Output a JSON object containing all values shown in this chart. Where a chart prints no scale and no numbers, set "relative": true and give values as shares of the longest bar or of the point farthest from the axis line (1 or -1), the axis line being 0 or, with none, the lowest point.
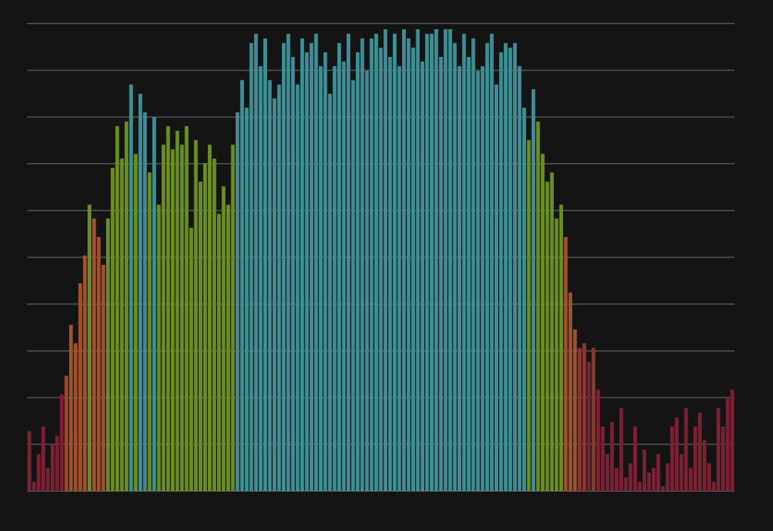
{
  "chart_data": {
    "type": "bar",
    "relative": true,
    "grid": "y",
    "categories": [
      null,
      null,
      null,
      null,
      null,
      null,
      null,
      null,
      null,
      null,
      null,
      null,
      null,
      null,
      null,
      null,
      null,
      null,
      null,
      null,
      null,
      null,
      null,
      null,
      null,
      null,
      null,
      null,
      null,
      null,
      null,
      null,
      null,
      null,
      null,
      null,
      null,
      null,
      null,
      null,
      null,
      null,
      null,
      null,
      null,
      null,
      null,
      null,
      null,
      null,
      null,
      null,
      null,
      null,
      null,
      null,
      null,
      null,
      null,
      null,
      null,
      null,
      null,
      null,
      null,
      null,
      null,
      null,
      null,
      null,
      null,
      null,
      null,
      null,
      null,
      null,
      null,
      null,
      null,
      null,
      null,
      null,
      null,
      null,
      null,
      null,
      null,
      null,
      null,
      null,
      null,
      null,
      null,
      null,
      null,
      null,
      null,
      null,
      null,
      null,
      null,
      null,
      null,
      null,
      null,
      null,
      null,
      null,
      null,
      null,
      null,
      null,
      null,
      null,
      null,
      null,
      null,
      null,
      null,
      null,
      null,
      null,
      null,
      null,
      null,
      null,
      null,
      null,
      null,
      null,
      null,
      null,
      null,
      null,
      null,
      null,
      null,
      null,
      null,
      null,
      null,
      null,
      null,
      null,
      null,
      null,
      null,
      null,
      null,
      null,
      null,
      null,
      null
    ],
    "values": [
      0.13,
      0.02,
      0.08,
      0.14,
      0.05,
      0.1,
      0.12,
      0.21,
      0.25,
      0.36,
      0.32,
      0.45,
      0.51,
      0.62,
      0.59,
      0.55,
      0.49,
      0.59,
      0.7,
      0.79,
      0.72,
      0.8,
      0.88,
      0.73,
      0.86,
      0.82,
      0.69,
      0.81,
      0.62,
      0.75,
      0.79,
      0.74,
      0.78,
      0.75,
      0.79,
      0.57,
      0.76,
      0.67,
      0.71,
      0.75,
      0.72,
      0.6,
      0.66,
      0.62,
      0.75,
      0.82,
      0.89,
      0.83,
      0.97,
      0.99,
      0.92,
      0.98,
      0.89,
      0.85,
      0.88,
      0.97,
      0.99,
      0.94,
      0.88,
      0.98,
      0.95,
      0.97,
      0.99,
      0.92,
      0.95,
      0.86,
      0.92,
      0.97,
      0.93,
      0.99,
      0.89,
      0.95,
      0.98,
      0.91,
      0.98,
      0.99,
      0.96,
      1.0,
      0.94,
      0.99,
      0.92,
      1.0,
      0.98,
      0.96,
      1.0,
      0.93,
      0.99,
      0.99,
      1.0,
      0.94,
      1.0,
      1.0,
      0.97,
      0.92,
      0.99,
      0.94,
      0.98,
      0.91,
      0.92,
      0.97,
      0.99,
      0.88,
      0.95,
      0.97,
      0.96,
      0.97,
      0.92,
      0.83,
      0.76,
      0.87,
      0.8,
      0.73,
      0.67,
      0.69,
      0.59,
      0.62,
      0.55,
      0.43,
      0.35,
      0.31,
      0.32,
      0.28,
      0.31,
      0.22,
      0.14,
      0.08,
      0.15,
      0.05,
      0.18,
      0.03,
      0.06,
      0.14,
      0.02,
      0.09,
      0.04,
      0.05,
      0.08,
      0.01,
      0.06,
      0.14,
      0.16,
      0.08,
      0.18,
      0.05,
      0.14,
      0.17,
      0.11,
      0.06,
      0.02,
      0.18,
      0.14,
      0.2,
      0.22
    ],
    "colors": [
      "#7a2233",
      "#7a2233",
      "#7a2233",
      "#7a2233",
      "#7a2233",
      "#7a2233",
      "#7a2233",
      "#7a2233",
      "#a0442d",
      "#a0522d",
      "#a0522d",
      "#a0522d",
      "#a0522d",
      "#6b8e23",
      "#a0522d",
      "#a0522d",
      "#a0522d",
      "#6b8e23",
      "#6b8e23",
      "#6b8e23",
      "#6b8e23",
      "#6b8e23",
      "#3e8e96",
      "#6b8e23",
      "#3e8e96",
      "#3e8e96",
      "#6b8e23",
      "#3e8e96",
      "#6b8e23",
      "#6b8e23",
      "#6b8e23",
      "#6b8e23",
      "#6b8e23",
      "#6b8e23",
      "#6b8e23",
      "#6b8e23",
      "#6b8e23",
      "#6b8e23",
      "#6b8e23",
      "#6b8e23",
      "#6b8e23",
      "#6b8e23",
      "#6b8e23",
      "#6b8e23",
      "#6b8e23",
      "#3e8e96",
      "#3e8e96",
      "#3e8e96",
      "#3e8e96",
      "#3e8e96",
      "#3e8e96",
      "#3e8e96",
      "#3e8e96",
      "#3e8e96",
      "#3e8e96",
      "#3e8e96",
      "#3e8e96",
      "#3e8e96",
      "#3e8e96",
      "#3e8e96",
      "#3e8e96",
      "#3e8e96",
      "#3e8e96",
      "#3e8e96",
      "#3e8e96",
      "#3e8e96",
      "#3e8e96",
      "#3e8e96",
      "#3e8e96",
      "#3e8e96",
      "#3e8e96",
      "#3e8e96",
      "#3e8e96",
      "#3e8e96",
      "#3e8e96",
      "#3e8e96",
      "#3e8e96",
      "#3e8e96",
      "#3e8e96",
      "#3e8e96",
      "#3e8e96",
      "#3e8e96",
      "#3e8e96",
      "#3e8e96",
      "#3e8e96",
      "#3e8e96",
      "#3e8e96",
      "#3e8e96",
      "#3e8e96",
      "#3e8e96",
      "#3e8e96",
      "#3e8e96",
      "#3e8e96",
      "#3e8e96",
      "#3e8e96",
      "#3e8e96",
      "#3e8e96",
      "#3e8e96",
      "#3e8e96",
      "#3e8e96",
      "#3e8e96",
      "#3e8e96",
      "#3e8e96",
      "#3e8e96",
      "#3e8e96",
      "#3e8e96",
      "#3e8e96",
      "#3e8e96",
      "#6b8e23",
      "#3e8e96",
      "#6b8e23",
      "#6b8e23",
      "#6b8e23",
      "#6b8e23",
      "#6b8e23",
      "#6b8e23",
      "#a0522d",
      "#a0522d",
      "#a0522d",
      "#8a3a2d",
      "#8a3a2d",
      "#7a2233",
      "#8a3a2d",
      "#7a2233",
      "#7a2233",
      "#7a2233",
      "#7a2233",
      "#7a2233",
      "#7a2233",
      "#7a2233",
      "#7a2233",
      "#7a2233",
      "#7a2233",
      "#7a2233",
      "#7a2233",
      "#7a2233",
      "#7a2233",
      "#7a2233",
      "#7a2233",
      "#7a2233",
      "#7a2233",
      "#7a2233",
      "#7a2233",
      "#7a2233",
      "#7a2233",
      "#7a2233",
      "#7a2233",
      "#7a2233",
      "#7a2233",
      "#7a2233",
      "#7a2233",
      "#7a2233",
      "#7a2233"
    ]
  }
}
